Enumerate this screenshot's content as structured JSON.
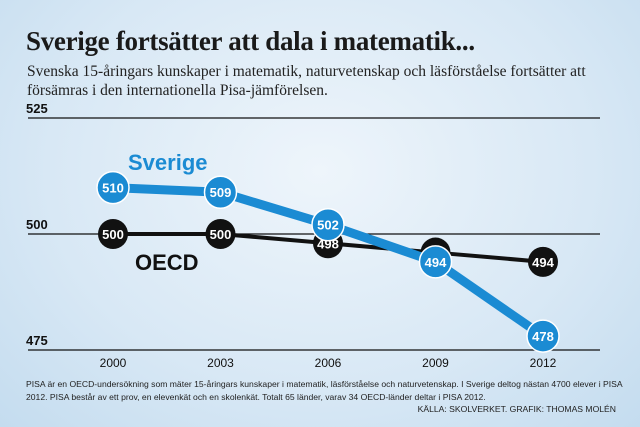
{
  "chart_data": {
    "type": "line",
    "title": "Sverige fortsätter att dala i matematik...",
    "subtitle": "Svenska 15-åringars kunskaper i matematik, naturvetenskap och läsförståelse fortsätter att försämras i den internationella Pisa-jämförelsen.",
    "categories": [
      "2000",
      "2003",
      "2006",
      "2009",
      "2012"
    ],
    "x": [
      2000,
      2003,
      2006,
      2009,
      2012
    ],
    "ylim": [
      475,
      525
    ],
    "yticks": [
      "475",
      "500",
      "525"
    ],
    "grid": true,
    "series": [
      {
        "name": "OECD",
        "values": [
          500,
          500,
          498,
          496,
          494
        ],
        "labels": [
          "500",
          "500",
          "498",
          "",
          "494"
        ],
        "color": "#111111",
        "label_color": "#ffffff"
      },
      {
        "name": "Sverige",
        "values": [
          510,
          509,
          502,
          494,
          478
        ],
        "labels": [
          "510",
          "509",
          "502",
          "494",
          "478"
        ],
        "color": "#1b8bd3",
        "label_color": "#ffffff"
      }
    ],
    "note": "PISA är en OECD-undersökning som mäter 15-åringars kunskaper i matematik, läsförståelse och naturvetenskap. I Sverige deltog nästan 4700 elever i PISA 2012. PISA består av ett prov, en elevenkät och en skolenkät. Totalt 65 länder, varav 34 OECD-länder deltar i PISA 2012.",
    "source": "KÄLLA: SKOLVERKET. GRAFIK: THOMAS MOLÉN"
  }
}
